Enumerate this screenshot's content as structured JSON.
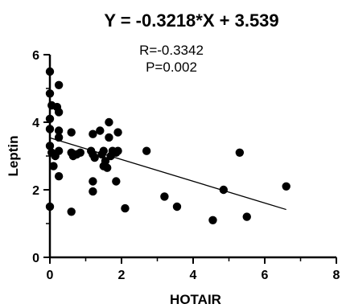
{
  "chart_data": {
    "type": "scatter",
    "title": "Y = -0.3218*X + 3.539",
    "annotations": [
      "R=-0.3342",
      "P=0.002"
    ],
    "xlabel": "HOTAIR",
    "ylabel": "Leptin",
    "xlim": [
      0,
      8
    ],
    "ylim": [
      0,
      6
    ],
    "xticks": [
      "0",
      "2",
      "4",
      "6",
      "8"
    ],
    "yticks": [
      "0",
      "2",
      "4",
      "6"
    ],
    "regression": {
      "slope": -0.3218,
      "intercept": 3.539,
      "x_range": [
        0,
        6.6
      ]
    },
    "points": [
      {
        "x": 0.0,
        "y": 5.5
      },
      {
        "x": 0.0,
        "y": 4.85
      },
      {
        "x": 0.05,
        "y": 4.5
      },
      {
        "x": 0.0,
        "y": 4.1
      },
      {
        "x": 0.2,
        "y": 4.45
      },
      {
        "x": 0.25,
        "y": 5.1
      },
      {
        "x": 0.25,
        "y": 4.3
      },
      {
        "x": 0.0,
        "y": 3.8
      },
      {
        "x": 0.0,
        "y": 3.3
      },
      {
        "x": 0.05,
        "y": 3.1
      },
      {
        "x": 0.15,
        "y": 3.0
      },
      {
        "x": 0.1,
        "y": 2.7
      },
      {
        "x": 0.0,
        "y": 1.5
      },
      {
        "x": 0.25,
        "y": 3.75
      },
      {
        "x": 0.25,
        "y": 3.55
      },
      {
        "x": 0.25,
        "y": 3.15
      },
      {
        "x": 0.25,
        "y": 2.4
      },
      {
        "x": 0.6,
        "y": 3.7
      },
      {
        "x": 0.6,
        "y": 3.1
      },
      {
        "x": 0.65,
        "y": 3.0
      },
      {
        "x": 0.75,
        "y": 3.05
      },
      {
        "x": 0.85,
        "y": 3.1
      },
      {
        "x": 0.6,
        "y": 1.35
      },
      {
        "x": 1.2,
        "y": 3.65
      },
      {
        "x": 1.15,
        "y": 3.15
      },
      {
        "x": 1.2,
        "y": 3.05
      },
      {
        "x": 1.25,
        "y": 2.95
      },
      {
        "x": 1.2,
        "y": 2.25
      },
      {
        "x": 1.2,
        "y": 1.95
      },
      {
        "x": 1.4,
        "y": 3.75
      },
      {
        "x": 1.45,
        "y": 3.05
      },
      {
        "x": 1.5,
        "y": 3.15
      },
      {
        "x": 1.55,
        "y": 2.85
      },
      {
        "x": 1.5,
        "y": 2.7
      },
      {
        "x": 1.6,
        "y": 2.65
      },
      {
        "x": 1.65,
        "y": 4.0
      },
      {
        "x": 1.65,
        "y": 3.55
      },
      {
        "x": 1.7,
        "y": 3.0
      },
      {
        "x": 1.75,
        "y": 3.15
      },
      {
        "x": 1.85,
        "y": 3.1
      },
      {
        "x": 1.9,
        "y": 3.15
      },
      {
        "x": 1.9,
        "y": 3.7
      },
      {
        "x": 1.85,
        "y": 2.25
      },
      {
        "x": 2.1,
        "y": 1.45
      },
      {
        "x": 2.7,
        "y": 3.15
      },
      {
        "x": 3.2,
        "y": 1.8
      },
      {
        "x": 3.55,
        "y": 1.5
      },
      {
        "x": 4.55,
        "y": 1.1
      },
      {
        "x": 4.85,
        "y": 2.0
      },
      {
        "x": 5.3,
        "y": 3.1
      },
      {
        "x": 5.5,
        "y": 1.2
      },
      {
        "x": 6.6,
        "y": 2.1
      }
    ]
  }
}
